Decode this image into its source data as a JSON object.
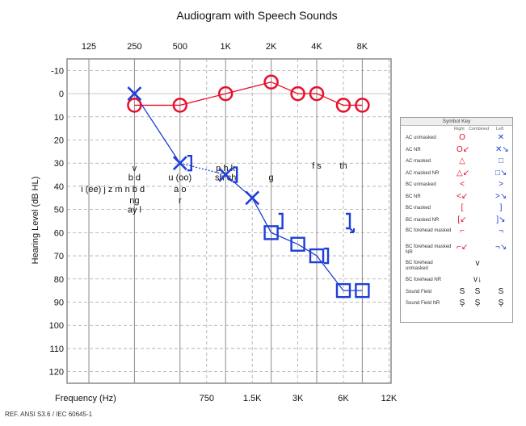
{
  "chart_data": {
    "type": "scatter",
    "title": "Audiogram with Speech Sounds",
    "xlabel": "Frequency (Hz)",
    "ylabel": "Hearing Level (dB HL)",
    "ylim": [
      -15,
      125
    ],
    "y_ticks": [
      -10,
      0,
      10,
      20,
      30,
      40,
      50,
      60,
      70,
      80,
      90,
      100,
      110,
      120
    ],
    "x_top_ticks": [
      "125",
      "250",
      "500",
      "1K",
      "2K",
      "4K",
      "8K"
    ],
    "x_bottom_ticks": [
      "750",
      "1.5K",
      "3K",
      "6K",
      "12K"
    ],
    "grid": true,
    "series": [
      {
        "name": "AC unmasked (Right)",
        "marker": "circle",
        "color": "#e8102b",
        "x": [
          250,
          500,
          1000,
          2000,
          3000,
          4000,
          6000,
          8000
        ],
        "y": [
          5,
          5,
          0,
          -5,
          0,
          0,
          5,
          5
        ]
      },
      {
        "name": "AC unmasked (Left)",
        "marker": "x",
        "color": "#1f3fd6",
        "x": [
          250,
          500,
          1000,
          1500
        ],
        "y": [
          0,
          30,
          35,
          45
        ]
      },
      {
        "name": "AC masked (Left)",
        "marker": "square",
        "color": "#1f3fd6",
        "x": [
          2000,
          3000,
          4000,
          6000,
          8000
        ],
        "y": [
          60,
          65,
          70,
          85,
          85
        ]
      },
      {
        "name": "BC masked (Left)",
        "marker": "bracket",
        "color": "#1f3fd6",
        "x": [
          500,
          1000,
          2000,
          4000
        ],
        "y": [
          30,
          35,
          55,
          70
        ]
      },
      {
        "name": "BC masked NR (Left)",
        "marker": "bracket-nr",
        "color": "#1f3fd6",
        "x": [
          6000
        ],
        "y": [
          55
        ]
      }
    ],
    "speech_sounds": [
      {
        "text": "v",
        "x": 250,
        "y": 32
      },
      {
        "text": "b d",
        "x": 250,
        "y": 36
      },
      {
        "text": "i (ee)  j    z m n b d",
        "x": 180,
        "y": 41
      },
      {
        "text": "ng",
        "x": 250,
        "y": 46
      },
      {
        "text": "ay l",
        "x": 250,
        "y": 50
      },
      {
        "text": "u (oo)",
        "x": 500,
        "y": 36
      },
      {
        "text": "a o",
        "x": 500,
        "y": 41
      },
      {
        "text": "r",
        "x": 500,
        "y": 46
      },
      {
        "text": "p h k",
        "x": 1000,
        "y": 32
      },
      {
        "text": "sh ch",
        "x": 1000,
        "y": 36
      },
      {
        "text": "g",
        "x": 2000,
        "y": 36
      },
      {
        "text": "f s",
        "x": 4000,
        "y": 31
      },
      {
        "text": "th",
        "x": 6000,
        "y": 31
      }
    ]
  },
  "symbol_key": {
    "title": "Symbol Key",
    "headers": [
      "Right",
      "Combined",
      "Left"
    ],
    "rows": [
      {
        "label": "AC unmasked",
        "right": "O",
        "combined": "",
        "left": "✕"
      },
      {
        "label": "AC NR",
        "right": "O↙",
        "combined": "",
        "left": "✕↘"
      },
      {
        "label": "AC masked",
        "right": "△",
        "combined": "",
        "left": "□"
      },
      {
        "label": "AC masked NR",
        "right": "△↙",
        "combined": "",
        "left": "□↘"
      },
      {
        "label": "BC unmasked",
        "right": "<",
        "combined": "",
        "left": ">"
      },
      {
        "label": "BC NR",
        "right": "<↙",
        "combined": "",
        "left": ">↘"
      },
      {
        "label": "BC masked",
        "right": "[",
        "combined": "",
        "left": "]"
      },
      {
        "label": "BC masked NR",
        "right": "[↙",
        "combined": "",
        "left": "]↘"
      },
      {
        "label": "BC forehead masked",
        "right": "⌐",
        "combined": "",
        "left": "¬"
      },
      {
        "label": "BC forehead masked NR",
        "right": "⌐↙",
        "combined": "",
        "left": "¬↘"
      },
      {
        "label": "BC forehead unmasked",
        "right": "",
        "combined": "v",
        "left": ""
      },
      {
        "label": "BC forehead NR",
        "right": "",
        "combined": "v↓",
        "left": ""
      },
      {
        "label": "Sound Field",
        "right": "S",
        "combined": "S",
        "left": "S"
      },
      {
        "label": "Sound Field NR",
        "right": "Ş",
        "combined": "Ş",
        "left": "Ş"
      }
    ]
  },
  "reference": "REF. ANSI S3.6 / IEC 60645-1"
}
